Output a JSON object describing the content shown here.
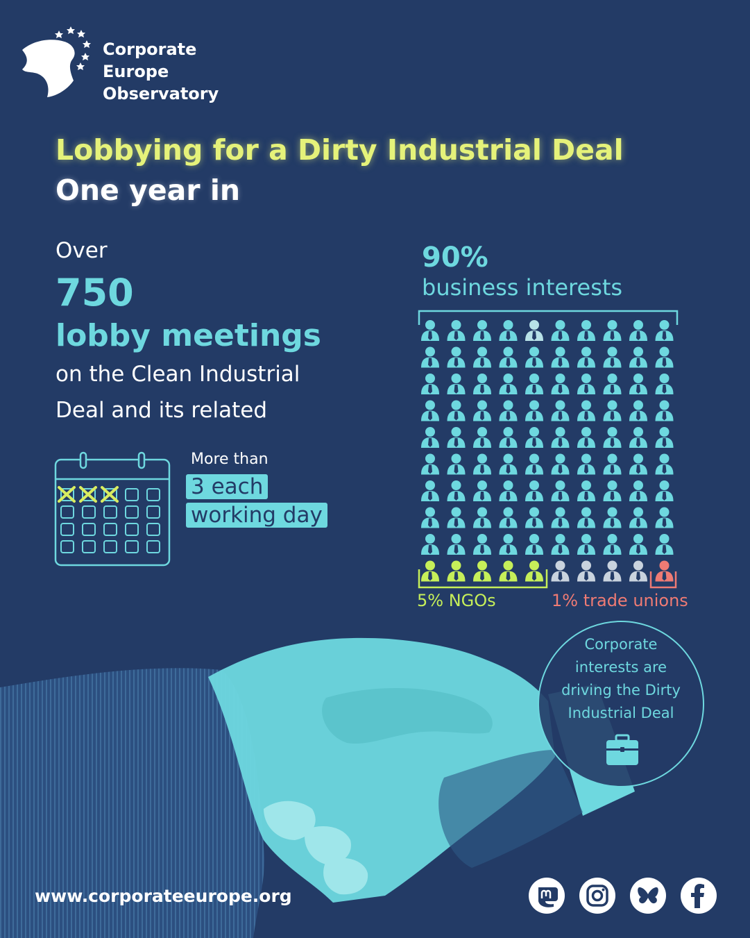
{
  "logo": {
    "name_line1": "Corporate",
    "name_line2": "Europe",
    "name_line3": "Observatory"
  },
  "title": {
    "line1": "Lobbying for a Dirty Industrial Deal",
    "line2": "One year in"
  },
  "meetings": {
    "over": "Over",
    "count": "750",
    "label": "lobby meetings",
    "desc_line1": "on the Clean Industrial",
    "desc_line2": "Deal and its related"
  },
  "frequency": {
    "intro": "More than",
    "line1": "3 each",
    "line2": "working day"
  },
  "waffle": {
    "business_pct": "90%",
    "business_label": "business interests",
    "ngo_label": "5% NGOs",
    "trade_union_label": "1% trade unions",
    "counts": {
      "business": 90,
      "ngo": 5,
      "other": 4,
      "trade_union": 1
    },
    "colors": {
      "business": "#6ed8df",
      "ngo": "#c6ef59",
      "other": "#c9d3de",
      "trade_union": "#ef7b74"
    }
  },
  "callout": {
    "line1": "Corporate",
    "line2": "interests are",
    "line3": "driving the Dirty",
    "line4": "Industrial Deal",
    "icon": "briefcase-icon"
  },
  "footer": {
    "website": "www.corporateeurope.org",
    "social_icons": [
      "mastodon-icon",
      "instagram-icon",
      "bluesky-icon",
      "facebook-icon"
    ]
  },
  "colors": {
    "background": "#233b66",
    "accent": "#6ed8df",
    "headline": "#e5f27a"
  }
}
